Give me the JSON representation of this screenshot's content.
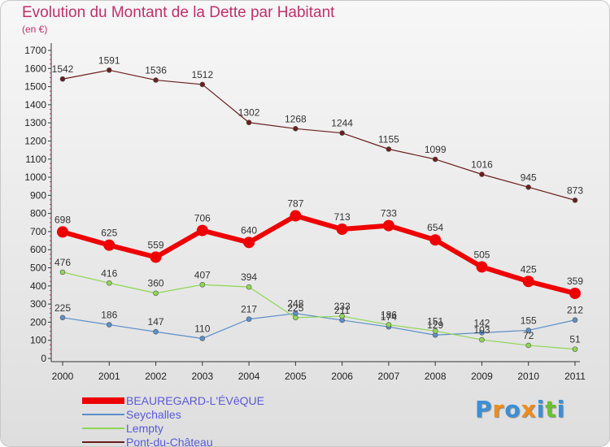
{
  "header": {
    "title": "Evolution du Montant de la Dette par Habitant",
    "unit": "(en €)"
  },
  "logo": {
    "text": "Proxiti",
    "colors": [
      "#3b8fd6",
      "#f08a1c",
      "#3b8fd6",
      "#f08a1c",
      "#3b8fd6",
      "#6bbf30",
      "#3b8fd6"
    ]
  },
  "chart_data": {
    "type": "line",
    "title": "Evolution du Montant de la Dette par Habitant",
    "ylabel": "(en €)",
    "xlabel": "",
    "x": [
      "2000",
      "2001",
      "2002",
      "2003",
      "2004",
      "2005",
      "2006",
      "2007",
      "2008",
      "2009",
      "2010",
      "2011"
    ],
    "ylim": [
      0,
      1700
    ],
    "yticks": [
      0,
      100,
      200,
      300,
      400,
      500,
      600,
      700,
      800,
      900,
      1000,
      1100,
      1200,
      1300,
      1400,
      1500,
      1600,
      1700
    ],
    "grid": false,
    "legend_position": "bottom-left",
    "series": [
      {
        "name": "BEAUREGARD-L'ÉVêQUE",
        "color": "#ee0000",
        "width": 6,
        "marker": 7,
        "values": [
          698,
          625,
          559,
          706,
          640,
          787,
          713,
          733,
          654,
          505,
          425,
          359
        ]
      },
      {
        "name": "Seychalles",
        "color": "#5b8fc8",
        "width": 1.2,
        "marker": 3,
        "values": [
          225,
          186,
          147,
          110,
          217,
          248,
          211,
          174,
          129,
          142,
          155,
          212
        ]
      },
      {
        "name": "Lempty",
        "color": "#8fd655",
        "width": 1.2,
        "marker": 3,
        "values": [
          476,
          416,
          360,
          407,
          394,
          225,
          233,
          186,
          151,
          103,
          72,
          51
        ]
      },
      {
        "name": "Pont-du-Château",
        "color": "#6b1e1e",
        "width": 1.2,
        "marker": 3,
        "values": [
          1542,
          1591,
          1536,
          1512,
          1302,
          1268,
          1244,
          1155,
          1099,
          1016,
          945,
          873
        ]
      }
    ]
  }
}
